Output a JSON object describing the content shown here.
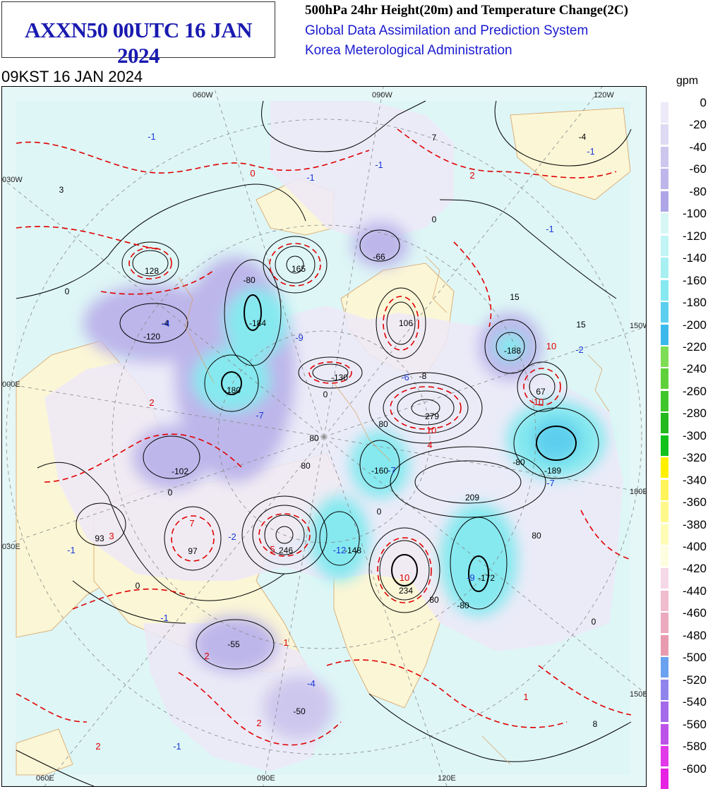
{
  "header": {
    "product": "AXXN50 00UTC 16 JAN 2024",
    "heading": "500hPa 24hr Height(20m) and Temperature Change(2C)",
    "org_line1": "Global Data Assimilation and Prediction System",
    "org_line2": "Korea Meterological Administration",
    "valid": "09KST 16 JAN 2024"
  },
  "map": {
    "coords": {
      "top": [
        "060W",
        "090W",
        "120W"
      ],
      "left": [
        "030W",
        "000E",
        "030E"
      ],
      "right": [
        "150W",
        "180E",
        "150E"
      ],
      "bottom": [
        "060E",
        "090E",
        "120E"
      ]
    },
    "height_labels": [
      "128",
      "165",
      "-66",
      "-184",
      "106",
      "-4",
      "-120",
      "-180",
      "-130",
      "279",
      "-102",
      "-160",
      "209",
      "93",
      "97",
      "246",
      "-148",
      "234",
      "-172",
      "-188",
      "67",
      "-189",
      "15",
      "7",
      "3",
      "-55",
      "-50",
      "-8",
      "8",
      "15",
      "-4"
    ],
    "contour_labels": [
      "0",
      "0",
      "0",
      "0",
      "80",
      "-80",
      "80",
      "80",
      "80",
      "-80",
      "-80",
      "80",
      "0",
      "0",
      "0"
    ],
    "temp_labels": {
      "red": [
        "0",
        "2",
        "2",
        "3",
        "7",
        "5",
        "10",
        "10",
        "10",
        "10",
        "4",
        "2",
        "1",
        "2",
        "1",
        "2"
      ],
      "blue": [
        "-1",
        "-1",
        "-1",
        "-1",
        "-4",
        "-9",
        "-7",
        "-7",
        "-6",
        "-2",
        "-1",
        "-12",
        "-9",
        "-2",
        "-1",
        "-4",
        "-7",
        "-1",
        "-1"
      ]
    }
  },
  "legend": {
    "unit": "gpm",
    "ticks": [
      "0",
      "-20",
      "-40",
      "-60",
      "-80",
      "-100",
      "-120",
      "-140",
      "-160",
      "-180",
      "-200",
      "-220",
      "-240",
      "-260",
      "-280",
      "-300",
      "-320",
      "-340",
      "-360",
      "-380",
      "-400",
      "-420",
      "-440",
      "-460",
      "-480",
      "-500",
      "-520",
      "-540",
      "-560",
      "-580",
      "-600"
    ],
    "colors": [
      "#ede9f8",
      "#dedaf3",
      "#cdc7ee",
      "#bdb6ea",
      "#aea6e6",
      "#d8f6f6",
      "#c1f4f4",
      "#a6f0f1",
      "#85e9ef",
      "#5dcfee",
      "#3cb9ec",
      "#7fdd55",
      "#5ed13a",
      "#3fc62a",
      "#24ba1f",
      "#10c21a",
      "#fff000",
      "#fff45a",
      "#fff88a",
      "#fffcb6",
      "#fffde0",
      "#f6d9e9",
      "#f0bccf",
      "#ecaabf",
      "#e89aaf",
      "#6aa1f0",
      "#8f84ec",
      "#a46ae9",
      "#bc53e8",
      "#e13ae9",
      "#e623e3"
    ]
  }
}
